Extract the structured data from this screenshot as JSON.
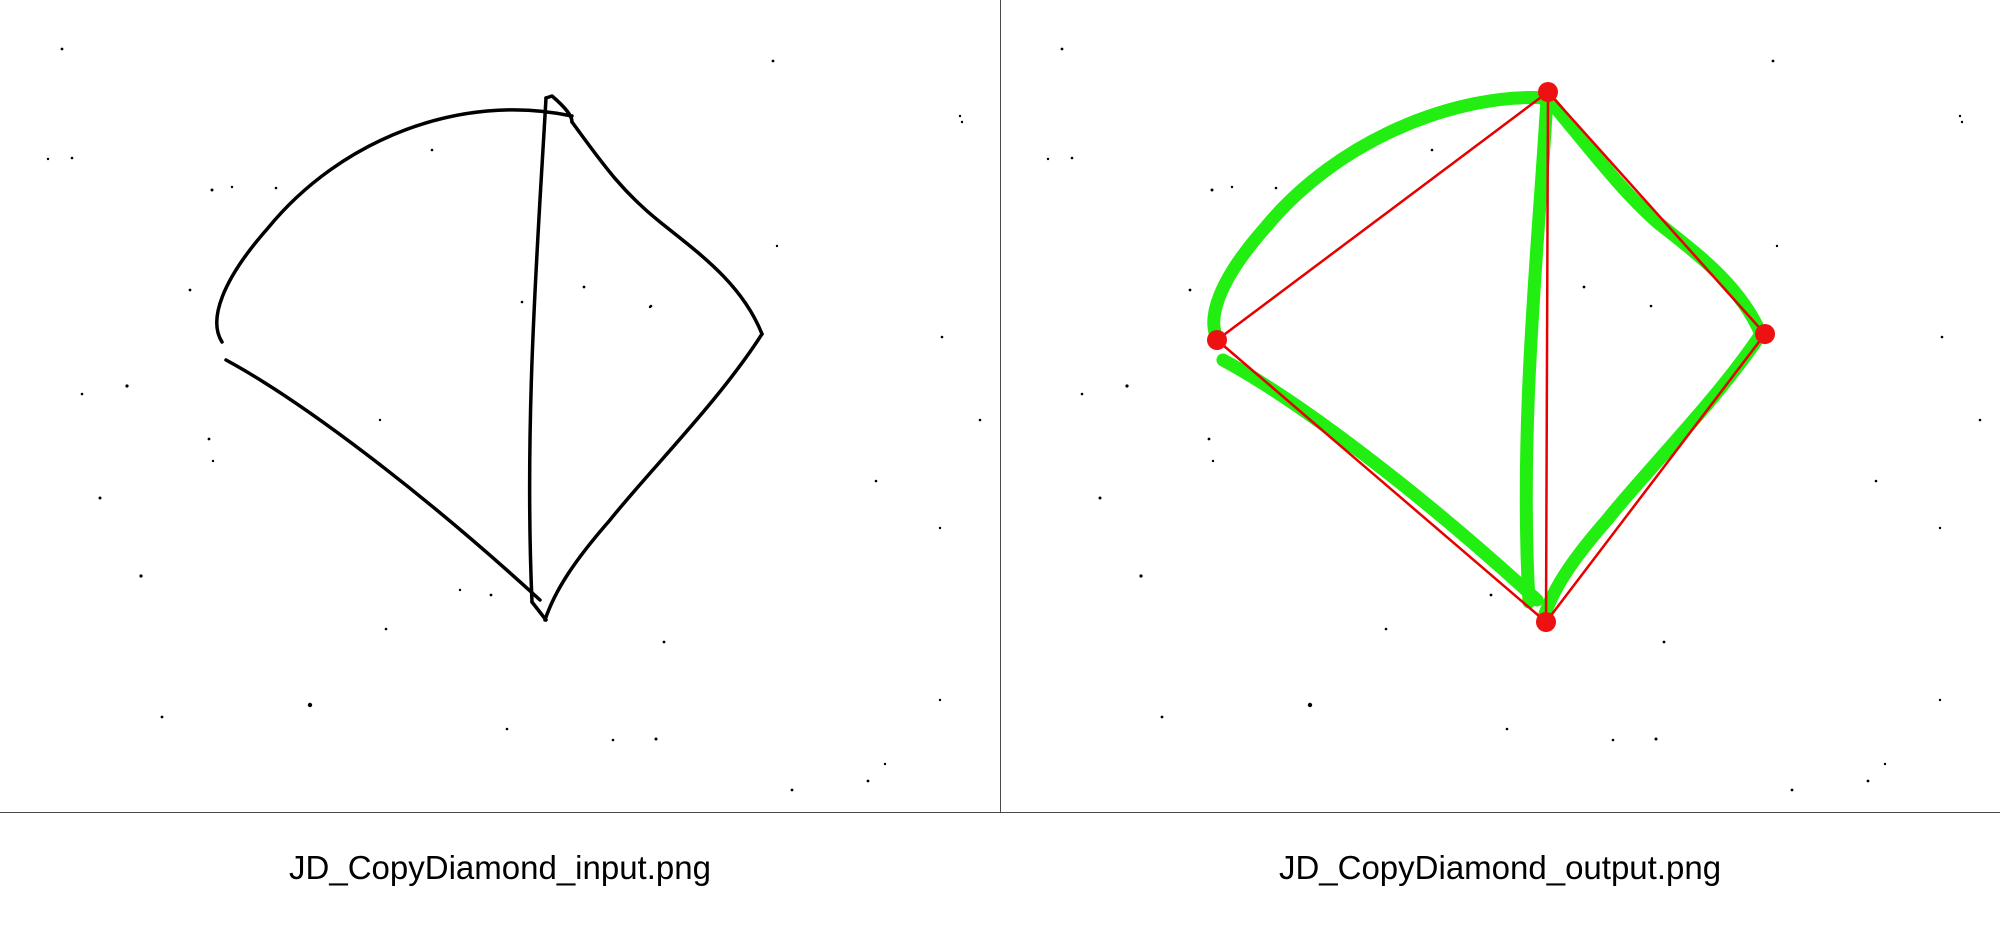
{
  "panels": [
    {
      "caption": "JD_CopyDiamond_input.png",
      "kind": "input-sketch",
      "stroke_color": "#000000"
    },
    {
      "caption": "JD_CopyDiamond_output.png",
      "kind": "recognized-output",
      "stroke_color": "#22ee11",
      "fit_line_color": "#e60000",
      "vertex_color": "#ee1111"
    }
  ],
  "colors": {
    "background": "#ffffff",
    "divider": "#4a4a4a",
    "caption_text": "#000000",
    "input_stroke": "#000000",
    "output_stroke": "#22ee11",
    "fit_line": "#e60000",
    "vertex": "#ee1111"
  }
}
